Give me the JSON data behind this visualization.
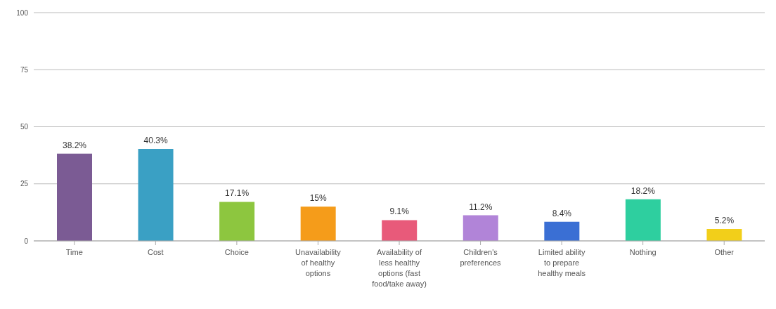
{
  "chart_data": {
    "type": "bar",
    "categories": [
      "Time",
      "Cost",
      "Choice",
      "Unavailability of healthy options",
      "Availability of less healthy options (fast food/take away)",
      "Children's preferences",
      "Limited ability to prepare healthy meals",
      "Nothing",
      "Other"
    ],
    "values": [
      38.2,
      40.3,
      17.1,
      15,
      9.1,
      11.2,
      8.4,
      18.2,
      5.2
    ],
    "colors": [
      "#7b5b94",
      "#3aa0c4",
      "#8dc63f",
      "#f59c1a",
      "#e85a7a",
      "#b184d8",
      "#3a6fd4",
      "#2ecf9f",
      "#f2cf1a"
    ],
    "value_labels": [
      "38.2%",
      "40.3%",
      "17.1%",
      "15%",
      "9.1%",
      "11.2%",
      "8.4%",
      "18.2%",
      "5.2%"
    ],
    "ylim": [
      0,
      100
    ],
    "yticks": [
      0,
      25,
      50,
      75,
      100
    ],
    "grid": "y"
  }
}
